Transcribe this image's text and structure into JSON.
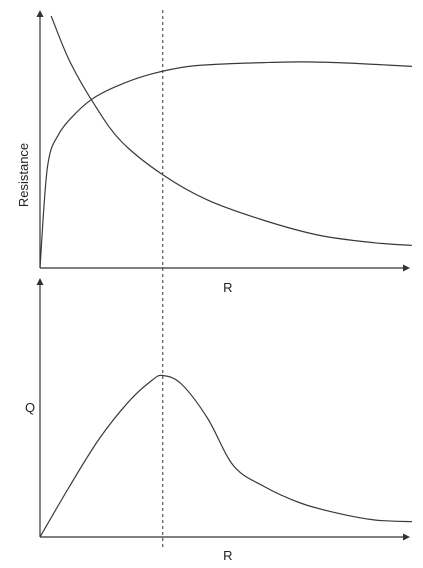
{
  "chart_data": [
    {
      "type": "line",
      "panel": "top",
      "xlabel": "R",
      "ylabel": "Resistance",
      "grid": false,
      "axes_have_ticks": false,
      "series": [
        {
          "shape": "rising-saturating",
          "x": [
            0.0,
            0.02,
            0.05,
            0.1,
            0.15,
            0.22,
            0.3,
            0.4,
            0.5,
            0.6,
            0.7,
            0.8,
            0.9,
            1.0
          ],
          "y": [
            0.0,
            0.4,
            0.53,
            0.62,
            0.68,
            0.73,
            0.77,
            0.8,
            0.81,
            0.815,
            0.818,
            0.815,
            0.808,
            0.8
          ]
        },
        {
          "shape": "falling-decay",
          "x": [
            0.03,
            0.08,
            0.15,
            0.22,
            0.33,
            0.45,
            0.6,
            0.75,
            0.9,
            1.0
          ],
          "y": [
            1.0,
            0.82,
            0.64,
            0.5,
            0.37,
            0.27,
            0.19,
            0.13,
            0.1,
            0.09
          ]
        }
      ],
      "guide_x": 0.33
    },
    {
      "type": "line",
      "panel": "bottom",
      "xlabel": "R",
      "ylabel": "Q",
      "grid": false,
      "axes_have_ticks": false,
      "series": [
        {
          "shape": "rise-peak-decay",
          "x": [
            0.0,
            0.08,
            0.16,
            0.24,
            0.3,
            0.33,
            0.38,
            0.45,
            0.52,
            0.6,
            0.7,
            0.8,
            0.9,
            1.0
          ],
          "y": [
            0.0,
            0.3,
            0.58,
            0.8,
            0.92,
            0.95,
            0.9,
            0.7,
            0.42,
            0.3,
            0.2,
            0.14,
            0.1,
            0.09
          ]
        }
      ],
      "guide_x": 0.33
    }
  ]
}
